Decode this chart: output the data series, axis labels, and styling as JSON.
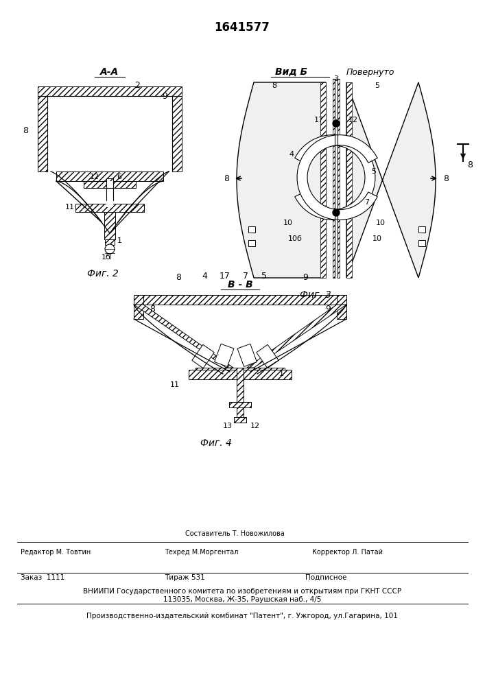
{
  "patent_number": "1641577",
  "bg_color": "#ffffff",
  "line_color": "#000000",
  "fig2_label": "Фиг. 2",
  "fig3_label": "Фиг. 3",
  "fig4_label": "Фиг. 4",
  "section_aa": "A-A",
  "section_bb": "B - B",
  "view_b": "Вид Б",
  "view_povern": "Повернуто",
  "footer_editor": "Редактор М. Товтин",
  "footer_composer": "Составитель Т. Новожилова",
  "footer_tech": "Техред М.Моргентал",
  "footer_corrector": "Корректор Л. Патай",
  "footer_order": "Заказ  1111",
  "footer_tirazh": "Тираж 531",
  "footer_podpis": "Подписное",
  "footer_vniip": "ВНИИПИ Государственного комитета по изобретениям и открытиям при ГКНТ СССР",
  "footer_address": "113035, Москва, Ж-35, Раушская наб., 4/5",
  "footer_kombinat": "Производственно-издательский комбинат \"Патент\", г. Ужгород, ул.Гагарина, 101"
}
